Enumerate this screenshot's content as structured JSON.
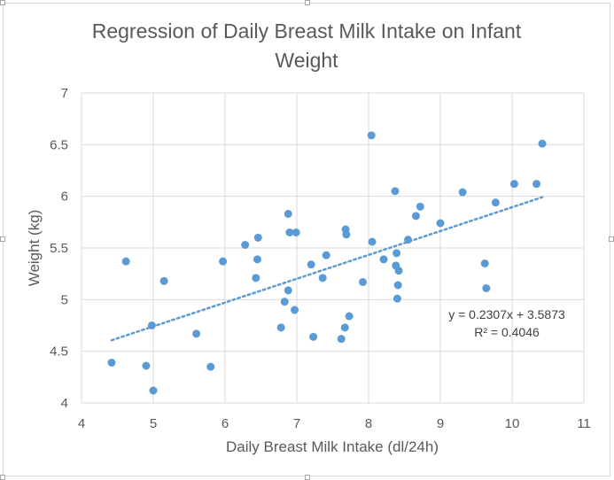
{
  "chart_data": {
    "type": "scatter",
    "title_lines": [
      "Regression of Daily Breast Milk Intake on Infant",
      "Weight"
    ],
    "xlabel": "Daily Breast Milk Intake (dl/24h)",
    "ylabel": "Weight (kg)",
    "xlim": [
      4,
      11
    ],
    "ylim": [
      4,
      7
    ],
    "xticks": [
      "4",
      "5",
      "6",
      "7",
      "8",
      "9",
      "10",
      "11"
    ],
    "yticks": [
      "4",
      "4.5",
      "5",
      "5.5",
      "6",
      "6.5",
      "7"
    ],
    "grid": true,
    "legend": "none",
    "points": [
      [
        4.42,
        4.39
      ],
      [
        4.62,
        5.37
      ],
      [
        4.9,
        4.36
      ],
      [
        4.98,
        4.75
      ],
      [
        5.0,
        4.12
      ],
      [
        5.15,
        5.18
      ],
      [
        5.6,
        4.67
      ],
      [
        5.8,
        4.35
      ],
      [
        5.97,
        5.37
      ],
      [
        6.28,
        5.53
      ],
      [
        6.43,
        5.21
      ],
      [
        6.45,
        5.39
      ],
      [
        6.46,
        5.6
      ],
      [
        6.78,
        4.73
      ],
      [
        6.83,
        4.98
      ],
      [
        6.88,
        5.09
      ],
      [
        6.88,
        5.83
      ],
      [
        6.9,
        5.65
      ],
      [
        6.97,
        4.9
      ],
      [
        6.99,
        5.65
      ],
      [
        7.2,
        5.34
      ],
      [
        7.23,
        4.64
      ],
      [
        7.36,
        5.21
      ],
      [
        7.41,
        5.43
      ],
      [
        7.62,
        4.62
      ],
      [
        7.67,
        4.73
      ],
      [
        7.68,
        5.68
      ],
      [
        7.69,
        5.63
      ],
      [
        7.73,
        4.84
      ],
      [
        7.92,
        5.17
      ],
      [
        8.04,
        6.59
      ],
      [
        8.05,
        5.56
      ],
      [
        8.21,
        5.39
      ],
      [
        8.37,
        6.05
      ],
      [
        8.38,
        5.33
      ],
      [
        8.39,
        5.45
      ],
      [
        8.4,
        5.01
      ],
      [
        8.41,
        5.14
      ],
      [
        8.42,
        5.28
      ],
      [
        8.55,
        5.58
      ],
      [
        8.66,
        5.81
      ],
      [
        8.72,
        5.9
      ],
      [
        9.0,
        5.74
      ],
      [
        9.31,
        6.04
      ],
      [
        9.62,
        5.35
      ],
      [
        9.64,
        5.11
      ],
      [
        9.77,
        5.94
      ],
      [
        10.03,
        6.12
      ],
      [
        10.34,
        6.12
      ],
      [
        10.42,
        6.51
      ]
    ],
    "trendline": {
      "type": "linear",
      "slope": 0.2307,
      "intercept": 3.5873,
      "x_range": [
        4.42,
        10.42
      ],
      "equation": "y = 0.2307x + 3.5873",
      "r_squared": "R² = 0.4046"
    },
    "colors": {
      "marker": "#5b9bd5",
      "trendline": "#5b9bd5",
      "grid": "#d9d9d9",
      "text": "#595959"
    }
  }
}
